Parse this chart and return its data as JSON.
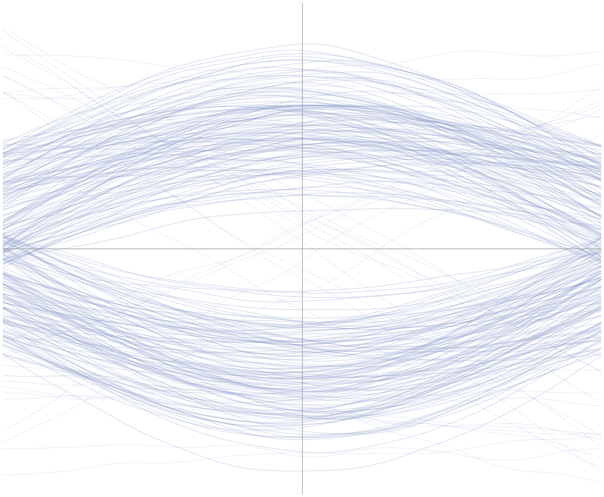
{
  "line_color": "#8899cc",
  "line_alpha": 0.35,
  "line_width": 0.65,
  "background_color": "#ffffff",
  "num_traces": 120,
  "num_points": 100,
  "x_range": [
    -1,
    1
  ],
  "y_range": [
    -1.4,
    1.4
  ],
  "axis_color": "#999999",
  "axis_linewidth": 0.6,
  "noise_std": 0.04,
  "noise_sigma": 5,
  "figure_width": 8.58,
  "figure_height": 7.06,
  "dpi": 100,
  "seed": 7
}
